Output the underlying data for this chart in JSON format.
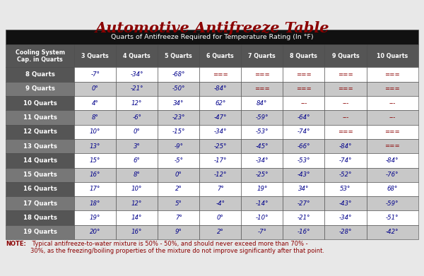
{
  "title": "Automotive Antifreeze Table",
  "subtitle": "Quarts of Antifreeze Required for Temperature Rating (In °F)",
  "note_bold": "NOTE:",
  "note_rest": " Typical antifreeze-to-water mixture is 50% - 50%, and should never exceed more than 70% -\n30%, as the freezing/boiling properties of the mixture do not improve significantly after that point.",
  "col_header": [
    "Cooling System\nCap. in Quarts",
    "3 Quarts",
    "4 Quarts",
    "5 Quarts",
    "6 Quarts",
    "7 Quarts",
    "8 Quarts",
    "9 Quarts",
    "10 Quarts"
  ],
  "rows": [
    [
      "8 Quarts",
      "-7°",
      "-34°",
      "-68°",
      "===",
      "===",
      "===",
      "===",
      "==="
    ],
    [
      "9 Quarts",
      "0°",
      "-21°",
      "-50°",
      "-84°",
      "===",
      "===",
      "===",
      "==="
    ],
    [
      "10 Quarts",
      "4°",
      "12°",
      "34°",
      "62°",
      "84°",
      "---",
      "---",
      "---"
    ],
    [
      "11 Quarts",
      "8°",
      "-6°",
      "-23°",
      "-47°",
      "-59°",
      "-64°",
      "---",
      "---"
    ],
    [
      "12 Quarts",
      "10°",
      "0°",
      "-15°",
      "-34°",
      "-53°",
      "-74°",
      "===",
      "==="
    ],
    [
      "13 Quarts",
      "13°",
      "3°",
      "-9°",
      "-25°",
      "-45°",
      "-66°",
      "-84°",
      "==="
    ],
    [
      "14 Quarts",
      "15°",
      "6°",
      "-5°",
      "-17°",
      "-34°",
      "-53°",
      "-74°",
      "-84°"
    ],
    [
      "15 Quarts",
      "16°",
      "8°",
      "0°",
      "-12°",
      "-25°",
      "-43°",
      "-52°",
      "-76°"
    ],
    [
      "16 Quarts",
      "17°",
      "10°",
      "2°",
      "7°",
      "19°",
      "34°",
      "53°",
      "68°"
    ],
    [
      "17 Quarts",
      "18°",
      "12°",
      "5°",
      "-4°",
      "-14°",
      "-27°",
      "-43°",
      "-59°"
    ],
    [
      "18 Quarts",
      "19°",
      "14°",
      "7°",
      "0°",
      "-10°",
      "-21°",
      "-34°",
      "-51°"
    ],
    [
      "19 Quarts",
      "20°",
      "16°",
      "9°",
      "2°",
      "-7°",
      "-16°",
      "-28°",
      "-42°"
    ]
  ],
  "bg_color": "#e8e8e8",
  "title_color": "#8b0000",
  "header_bg": "#111111",
  "header_text": "#ffffff",
  "subheader_bg": "#555555",
  "subheader_text": "#ffffff",
  "row_bg_even": "#ffffff",
  "row_bg_odd": "#c8c8c8",
  "row_label_bg_even": "#777777",
  "row_label_bg_odd": "#555555",
  "row_label_text": "#ffffff",
  "cell_text_color": "#00008b",
  "special_text_color": "#8b0000",
  "note_color": "#8b0000"
}
